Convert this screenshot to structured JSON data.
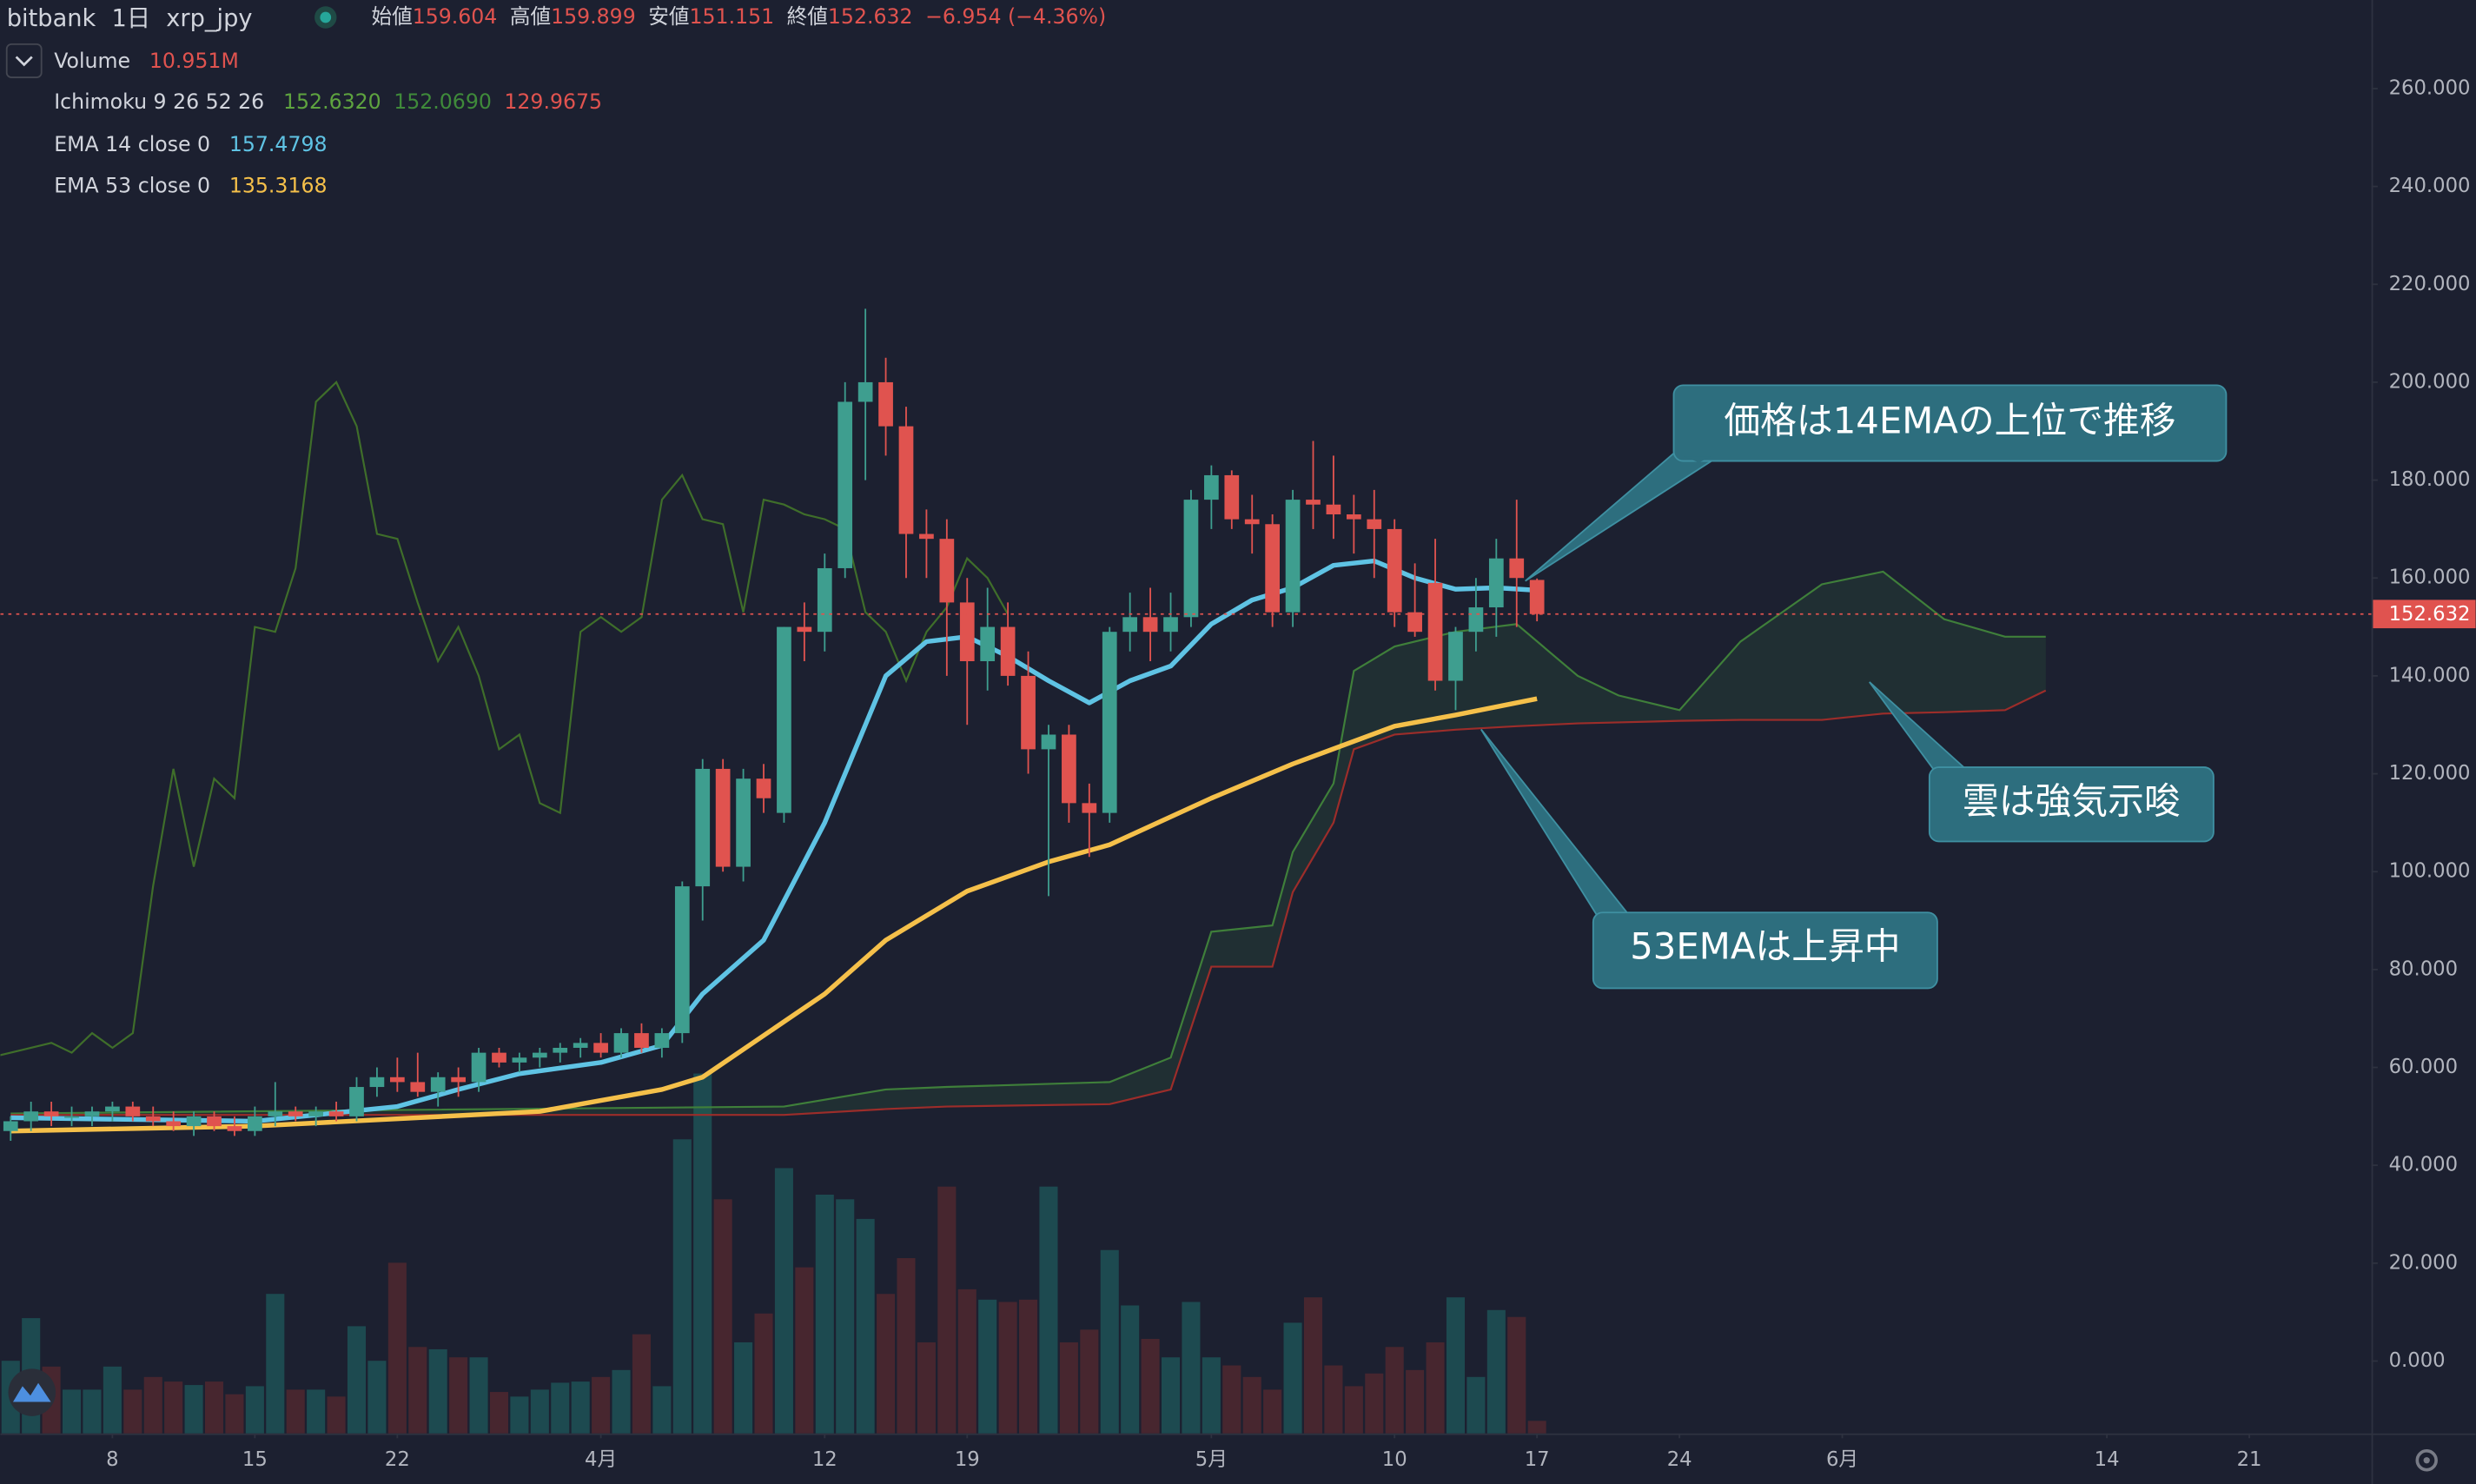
{
  "chart_data": {
    "type": "candlestick",
    "title": "bitbank",
    "interval": "1日",
    "symbol": "xrp_jpy",
    "header_labels": [
      "始値",
      "高値",
      "安値",
      "終値"
    ],
    "change": "−6.954 (−4.36%)",
    "up_color": "#3e9e8f",
    "down_color": "#e0534f",
    "volume_up_color": "#1d4a50",
    "volume_down_color": "#47262f",
    "grid": false,
    "xlim": [
      "03-03",
      "06-27"
    ],
    "ylim": [
      -14.8,
      278.1
    ],
    "yticks": [
      {
        "value": 0,
        "label": "0.000"
      },
      {
        "value": 20,
        "label": "20.000"
      },
      {
        "value": 40,
        "label": "40.000"
      },
      {
        "value": 60,
        "label": "60.000"
      },
      {
        "value": 80,
        "label": "80.000"
      },
      {
        "value": 100,
        "label": "100.000"
      },
      {
        "value": 120,
        "label": "120.000"
      },
      {
        "value": 140,
        "label": "140.000"
      },
      {
        "value": 160,
        "label": "160.000"
      },
      {
        "value": 180,
        "label": "180.000"
      },
      {
        "value": 200,
        "label": "200.000"
      },
      {
        "value": 220,
        "label": "220.000"
      },
      {
        "value": 240,
        "label": "240.000"
      },
      {
        "value": 260,
        "label": "260.000"
      }
    ],
    "xticks": [
      {
        "value": "03-08",
        "label": "8"
      },
      {
        "value": "03-15",
        "label": "15"
      },
      {
        "value": "03-22",
        "label": "22"
      },
      {
        "value": "04-01",
        "label": "4月"
      },
      {
        "value": "04-12",
        "label": "12"
      },
      {
        "value": "04-19",
        "label": "19"
      },
      {
        "value": "05-01",
        "label": "5月"
      },
      {
        "value": "05-10",
        "label": "10"
      },
      {
        "value": "05-17",
        "label": "17"
      },
      {
        "value": "05-24",
        "label": "24"
      },
      {
        "value": "06-01",
        "label": "6月"
      },
      {
        "value": "06-14",
        "label": "14"
      },
      {
        "value": "06-21",
        "label": "21"
      }
    ],
    "x": [
      "03-03",
      "03-04",
      "03-05",
      "03-06",
      "03-07",
      "03-08",
      "03-09",
      "03-10",
      "03-11",
      "03-12",
      "03-13",
      "03-14",
      "03-15",
      "03-16",
      "03-17",
      "03-18",
      "03-19",
      "03-20",
      "03-21",
      "03-22",
      "03-23",
      "03-24",
      "03-25",
      "03-26",
      "03-27",
      "03-28",
      "03-29",
      "03-30",
      "03-31",
      "04-01",
      "04-02",
      "04-03",
      "04-04",
      "04-05",
      "04-06",
      "04-07",
      "04-08",
      "04-09",
      "04-10",
      "04-11",
      "04-12",
      "04-13",
      "04-14",
      "04-15",
      "04-16",
      "04-17",
      "04-18",
      "04-19",
      "04-20",
      "04-21",
      "04-22",
      "04-23",
      "04-24",
      "04-25",
      "04-26",
      "04-27",
      "04-28",
      "04-29",
      "04-30",
      "05-01",
      "05-02",
      "05-03",
      "05-04",
      "05-05",
      "05-06",
      "05-07",
      "05-08",
      "05-09",
      "05-10",
      "05-11",
      "05-12",
      "05-13",
      "05-14",
      "05-15",
      "05-16",
      "05-17"
    ],
    "open": [
      47,
      49,
      51,
      50,
      50,
      51,
      52,
      50,
      49,
      48,
      50,
      48,
      47,
      50,
      51,
      50,
      51,
      50,
      56,
      58,
      57,
      55,
      58,
      57,
      63,
      61,
      62,
      63,
      64,
      65,
      63,
      67,
      64,
      67,
      97,
      121,
      101,
      119,
      112,
      150,
      149,
      162,
      196,
      200,
      191,
      169,
      168,
      155,
      143,
      150,
      140,
      125,
      128,
      114,
      112,
      149,
      152,
      149,
      152,
      176,
      181,
      172,
      171,
      153,
      176,
      175,
      173,
      172,
      170,
      153,
      159,
      139,
      149,
      154,
      164,
      159.604
    ],
    "high": [
      50,
      53,
      53,
      52,
      52,
      53,
      53,
      52,
      51,
      51,
      51,
      50,
      52,
      57,
      52,
      52,
      53,
      58,
      60,
      62,
      63,
      59,
      60,
      64,
      64,
      63,
      64,
      65,
      66,
      67,
      68,
      69,
      68,
      98,
      123,
      123,
      121,
      122,
      150,
      155,
      165,
      200,
      215,
      205,
      195,
      174,
      172,
      160,
      158,
      155,
      145,
      130,
      130,
      118,
      150,
      157,
      158,
      157,
      178,
      183,
      182,
      177,
      173,
      178,
      188,
      185,
      177,
      178,
      172,
      163,
      168,
      150,
      160,
      168,
      176,
      159.899
    ],
    "low": [
      45,
      47,
      48,
      48,
      48,
      49,
      49,
      48,
      47,
      46,
      47,
      46,
      46,
      48,
      49,
      48,
      49,
      49,
      54,
      55,
      54,
      52,
      54,
      55,
      60,
      59,
      60,
      61,
      62,
      62,
      62,
      63,
      62,
      65,
      90,
      100,
      98,
      112,
      110,
      143,
      145,
      160,
      180,
      185,
      160,
      160,
      140,
      130,
      137,
      138,
      120,
      95,
      110,
      103,
      110,
      145,
      143,
      145,
      150,
      170,
      170,
      165,
      150,
      150,
      170,
      168,
      165,
      160,
      150,
      148,
      137,
      133,
      145,
      148,
      150,
      151.151
    ],
    "close": [
      49,
      51,
      50,
      50,
      51,
      52,
      50,
      49,
      48,
      50,
      48,
      47,
      50,
      51,
      50,
      51,
      50,
      56,
      58,
      57,
      55,
      58,
      57,
      63,
      61,
      62,
      63,
      64,
      65,
      63,
      67,
      64,
      67,
      97,
      121,
      101,
      119,
      115,
      150,
      149,
      162,
      196,
      200,
      191,
      169,
      168,
      155,
      143,
      150,
      140,
      125,
      128,
      114,
      112,
      149,
      152,
      149,
      152,
      176,
      181,
      172,
      171,
      153,
      176,
      175,
      173,
      172,
      170,
      153,
      149,
      139,
      149,
      154,
      164,
      160,
      152.632
    ],
    "volume": {
      "name": "Volume",
      "values": [
        63,
        100,
        58,
        38,
        38,
        58,
        38,
        49,
        45,
        42,
        45,
        34,
        41,
        121,
        38,
        38,
        32,
        93,
        63,
        148,
        75,
        73,
        66,
        66,
        36,
        32,
        38,
        44,
        45,
        49,
        55,
        86,
        41,
        255,
        312,
        203,
        79,
        104,
        230,
        144,
        207,
        203,
        186,
        121,
        152,
        79,
        214,
        125,
        116,
        114,
        116,
        214,
        79,
        90,
        159,
        111,
        82,
        66,
        114,
        66,
        59,
        49,
        38,
        96,
        118,
        59,
        41,
        52,
        75,
        55,
        79,
        118,
        49,
        107,
        101,
        10.951
      ],
      "value_labels": [
        null,
        null,
        null,
        null,
        null,
        null,
        null,
        null,
        null,
        null,
        null,
        null,
        null,
        null,
        null,
        null,
        null,
        null,
        null,
        null,
        null,
        null,
        null,
        null,
        null,
        null,
        null,
        null,
        null,
        null,
        null,
        null,
        null,
        null,
        null,
        null,
        null,
        null,
        null,
        null,
        null,
        null,
        null,
        null,
        null,
        null,
        null,
        null,
        null,
        null,
        null,
        null,
        null,
        null,
        null,
        null,
        null,
        null,
        null,
        null,
        null,
        null,
        null,
        null,
        null,
        null,
        null,
        null,
        null,
        null,
        null,
        null,
        null,
        null,
        null,
        "10.951M"
      ]
    },
    "ichimoku": {
      "name": "Ichimoku 9 26 52 26",
      "legend_values": [
        "152.6320",
        "152.0690",
        "129.9675"
      ],
      "legend_colors": [
        "#5ea33f",
        "#3f8a3a",
        "#e0534f"
      ],
      "lag": 26,
      "lagging_color": "#3f6e2a",
      "span_a_color": "#3f7f3a",
      "span_b_color": "#9c2d2a",
      "cloud_color": "rgba(67,160,71,0.12)",
      "x": [
        "03-03",
        "04-10",
        "04-15",
        "04-18",
        "04-26",
        "04-29",
        "05-01",
        "05-04",
        "05-05",
        "05-07",
        "05-08",
        "05-10",
        "05-13",
        "05-16",
        "05-19",
        "05-21",
        "05-24",
        "05-27",
        "05-31",
        "06-03",
        "06-06",
        "06-09",
        "06-11"
      ],
      "span_a": [
        50.6,
        52,
        55.5,
        56,
        57,
        62,
        87.7,
        89,
        104,
        118,
        141,
        146,
        149,
        150.6,
        140,
        136,
        133,
        147,
        158.7,
        161.3,
        151.6,
        148,
        148
      ],
      "span_b": [
        50.3,
        50.3,
        51.5,
        52,
        52.5,
        55.5,
        80.6,
        80.6,
        95.8,
        110,
        125,
        128,
        129,
        129.7,
        130.3,
        130.5,
        130.8,
        131,
        131,
        132.3,
        132.6,
        133,
        137
      ]
    },
    "lines": [
      {
        "name": "EMA 14 close 0",
        "color": "#5fc3e4",
        "width": 3,
        "x": [
          "03-03",
          "03-15",
          "03-22",
          "03-25",
          "03-28",
          "04-01",
          "04-04",
          "04-06",
          "04-09",
          "04-12",
          "04-15",
          "04-17",
          "04-19",
          "04-21",
          "04-23",
          "04-25",
          "04-27",
          "04-29",
          "05-01",
          "05-03",
          "05-05",
          "05-07",
          "05-09",
          "05-11",
          "05-13",
          "05-15",
          "05-17"
        ],
        "values": [
          49.7,
          49,
          52,
          55.5,
          58.7,
          61,
          64.5,
          75,
          86,
          110,
          140,
          147,
          148,
          144,
          139,
          134.5,
          139,
          142,
          150.6,
          155.5,
          158,
          162.6,
          163.5,
          160,
          157.7,
          158,
          157.4798
        ]
      },
      {
        "name": "EMA 53 close 0",
        "color": "#f5c04a",
        "width": 3,
        "x": [
          "03-03",
          "03-15",
          "03-29",
          "04-04",
          "04-06",
          "04-12",
          "04-15",
          "04-19",
          "04-23",
          "04-26",
          "05-01",
          "05-05",
          "05-10",
          "05-13",
          "05-17"
        ],
        "values": [
          47,
          48,
          51,
          55.5,
          58,
          75,
          86,
          96,
          102,
          105.5,
          115,
          122,
          129.7,
          132,
          135.3168
        ]
      }
    ],
    "annotations": [
      "価格は14EMAの上位で推移",
      "雲は強気示唆",
      "53EMAは上昇中"
    ]
  }
}
